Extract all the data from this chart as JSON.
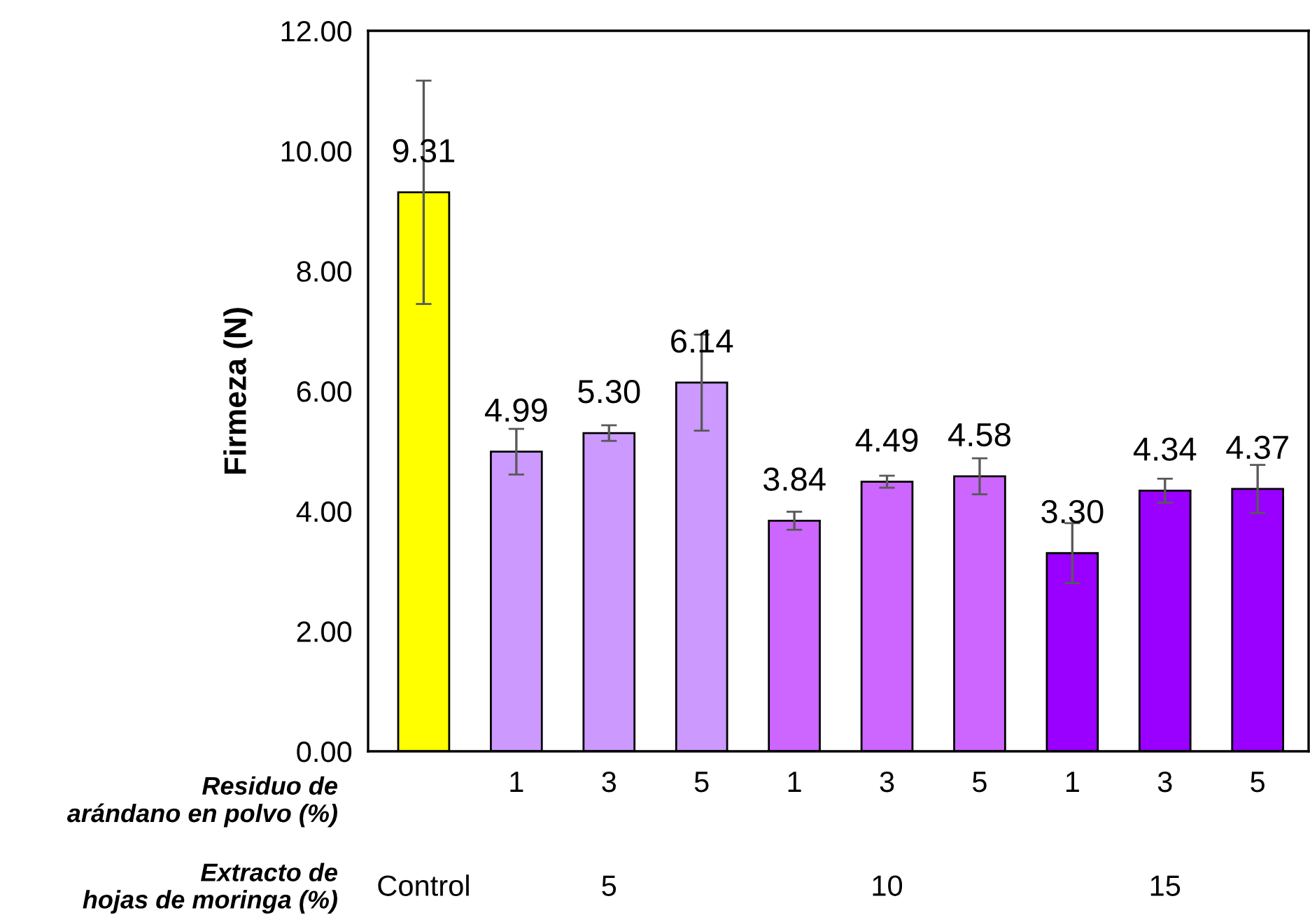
{
  "chart_data": {
    "type": "bar",
    "ylabel": "Firmeza (N)",
    "categories": [
      null,
      "1",
      "3",
      "5",
      "1",
      "3",
      "5",
      "1",
      "3",
      "5"
    ],
    "values": [
      9.31,
      4.99,
      5.3,
      6.14,
      3.84,
      4.49,
      4.58,
      3.3,
      4.34,
      4.37
    ],
    "colors": [
      "#ffff00",
      "#cc99ff",
      "#cc99ff",
      "#cc99ff",
      "#cc66ff",
      "#cc66ff",
      "#cc66ff",
      "#9900ff",
      "#9900ff",
      "#9900ff"
    ],
    "errors": [
      1.86,
      0.38,
      0.13,
      0.8,
      0.15,
      0.1,
      0.3,
      0.5,
      0.2,
      0.4
    ],
    "value_labels": [
      "9.31",
      "4.99",
      "5.30",
      "6.14",
      "3.84",
      "4.49",
      "4.58",
      "3.30",
      "4.34",
      "4.37"
    ],
    "ylim": [
      0,
      12
    ],
    "yticks": [
      {
        "value": 0,
        "label": "0.00"
      },
      {
        "value": 2,
        "label": "2.00"
      },
      {
        "value": 4,
        "label": "4.00"
      },
      {
        "value": 6,
        "label": "6.00"
      },
      {
        "value": 8,
        "label": "8.00"
      },
      {
        "value": 10,
        "label": "10.00"
      },
      {
        "value": 12,
        "label": "12.00"
      }
    ],
    "annotations": [
      "Residuo de\narándano en polvo (%)",
      "Extracto de\nhojas de moringa (%)",
      "Control",
      "5",
      "10",
      "15"
    ],
    "grid": false,
    "legend": false
  }
}
